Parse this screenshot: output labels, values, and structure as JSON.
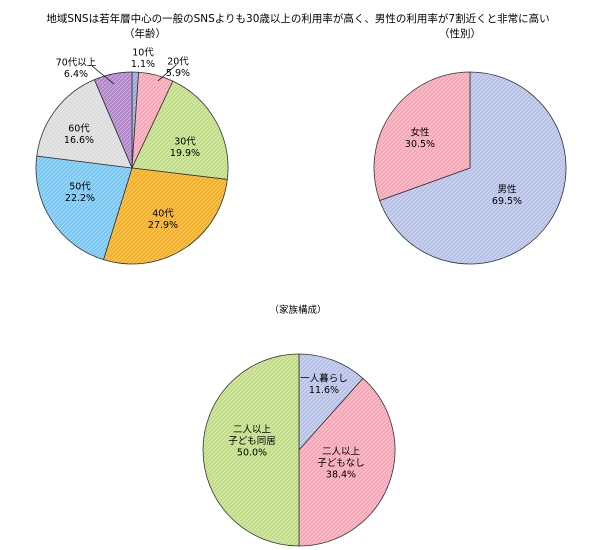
{
  "title": "地域SNSは若年層中心の一般のSNSよりも30歳以上の利用率が高く、男性の利用率が7割近くと非常に高い",
  "chart_data": [
    {
      "type": "pie",
      "title": "（年齢）",
      "slices": [
        {
          "label": "10代",
          "value": 1.1,
          "pct": "1.1%",
          "color": "#9aa8d8"
        },
        {
          "label": "20代",
          "value": 5.9,
          "pct": "5.9%",
          "color": "#f4a9b8"
        },
        {
          "label": "30代",
          "value": 19.9,
          "pct": "19.9%",
          "color": "#c3dc8c"
        },
        {
          "label": "40代",
          "value": 27.9,
          "pct": "27.9%",
          "color": "#f0b030"
        },
        {
          "label": "50代",
          "value": 22.2,
          "pct": "22.2%",
          "color": "#7cc6f0"
        },
        {
          "label": "60代",
          "value": 16.6,
          "pct": "16.6%",
          "color": "#dcdcdc"
        },
        {
          "label": "70代以上",
          "value": 6.4,
          "pct": "6.4%",
          "color": "#b088c8"
        }
      ]
    },
    {
      "type": "pie",
      "title": "（性別）",
      "slices": [
        {
          "label": "男性",
          "value": 69.5,
          "pct": "69.5%",
          "color": "#b8c2e4"
        },
        {
          "label": "女性",
          "value": 30.5,
          "pct": "30.5%",
          "color": "#f4a9b8"
        }
      ]
    },
    {
      "type": "pie",
      "title": "（家族構成）",
      "slices": [
        {
          "label": "一人暮らし",
          "value": 11.6,
          "pct": "11.6%",
          "color": "#b8c2e4"
        },
        {
          "label": "二人以上\n子どもなし",
          "value": 38.4,
          "pct": "38.4%",
          "color": "#f4a9b8"
        },
        {
          "label": "二人以上\n子ども同居",
          "value": 50.0,
          "pct": "50.0%",
          "color": "#c3dc8c"
        }
      ]
    }
  ]
}
